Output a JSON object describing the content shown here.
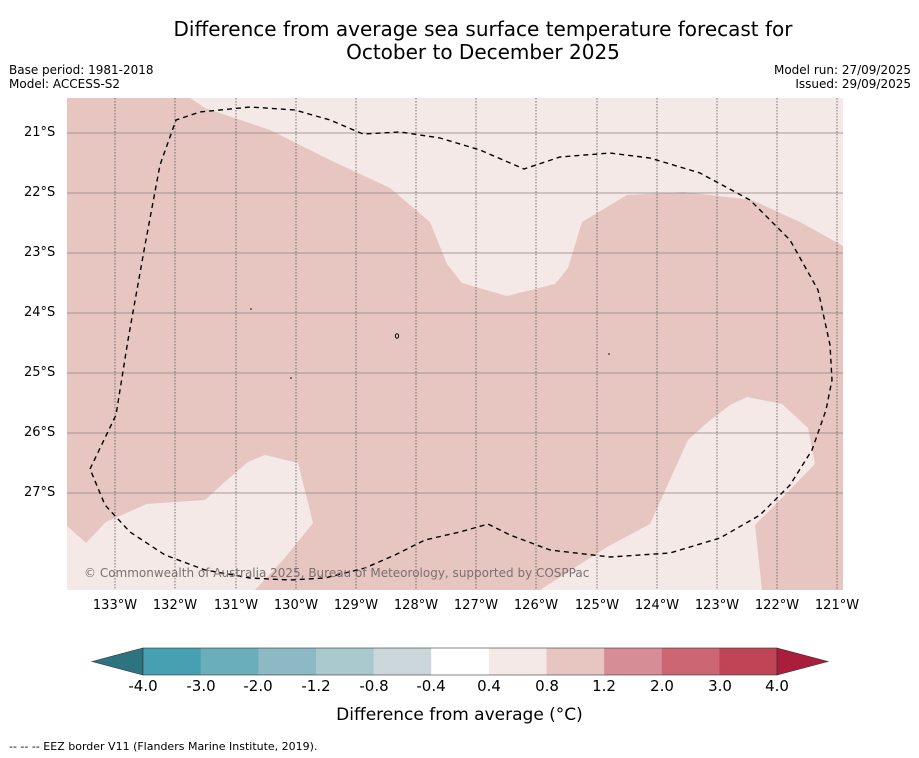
{
  "title": {
    "line1": "Difference from average sea surface temperature forecast for",
    "line2": "October to December 2025"
  },
  "meta": {
    "base_period": "Base period: 1981-2018",
    "model": "Model: ACCESS-S2",
    "model_run": "Model run: 27/09/2025",
    "issued": "Issued: 29/09/2025"
  },
  "map": {
    "latitude_labels": [
      "21°S",
      "22°S",
      "23°S",
      "24°S",
      "25°S",
      "26°S",
      "27°S"
    ],
    "longitude_labels": [
      "133°W",
      "132°W",
      "131°W",
      "130°W",
      "129°W",
      "128°W",
      "127°W",
      "126°W",
      "125°W",
      "124°W",
      "123°W",
      "122°W",
      "121°W"
    ],
    "copyright": "© Commonwealth of Australia 2025, Bureau of Meteorology, supported by COSPPac",
    "colors": {
      "band_04_08": "#f5e9e8",
      "band_08_12": "#e7c6c2",
      "eez_line": "#000000"
    }
  },
  "colorbar": {
    "ticks": [
      "-4.0",
      "-3.0",
      "-2.0",
      "-1.2",
      "-0.8",
      "-0.4",
      "0.4",
      "0.8",
      "1.2",
      "2.0",
      "3.0",
      "4.0"
    ],
    "colors": [
      "#2e7480",
      "#46a0b2",
      "#6aadbb",
      "#8cb9c4",
      "#a9c9ce",
      "#ccd7db",
      "#ffffff",
      "#f5e9e8",
      "#e7c6c2",
      "#d68d95",
      "#cc6672",
      "#c04456",
      "#aa1d3c"
    ],
    "label": "Difference from average (°C)"
  },
  "footer": "--  --  -- EEZ border V11 (Flanders Marine Institute, 2019)."
}
